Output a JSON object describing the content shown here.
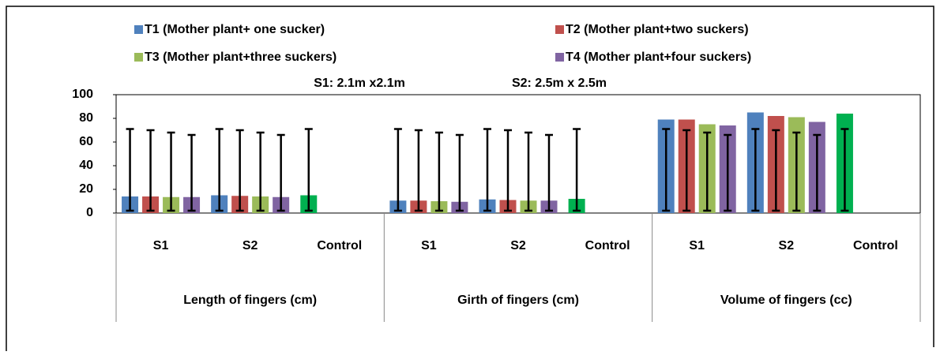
{
  "chart_data": {
    "type": "bar",
    "annotations": [
      "S1: 2.1m x2.1m",
      "S2: 2.5m x 2.5m"
    ],
    "groups": [
      "Length of fingers (cm)",
      "Girth of fingers (cm)",
      "Volume of fingers (cc)"
    ],
    "categories": [
      "S1",
      "S2",
      "Control",
      "S1",
      "S2",
      "Control",
      "S1",
      "S2",
      "Control"
    ],
    "series": [
      {
        "name": "T1 (Mother plant+ one sucker)",
        "color": "#4f81bd",
        "values": [
          14,
          15,
          null,
          10.5,
          11.5,
          null,
          79,
          85,
          null
        ],
        "error_low": [
          2,
          2,
          null,
          2,
          2,
          null,
          2,
          2,
          null
        ],
        "error_high": [
          71,
          71,
          null,
          71,
          71,
          null,
          71,
          71,
          null
        ]
      },
      {
        "name": "T2 (Mother plant+two suckers)",
        "color": "#c0504d",
        "values": [
          14,
          14.5,
          null,
          10.5,
          11,
          null,
          79,
          82,
          null
        ],
        "error_low": [
          2,
          2,
          null,
          2,
          2,
          null,
          2,
          2,
          null
        ],
        "error_high": [
          70,
          70,
          null,
          70,
          70,
          null,
          70,
          70,
          null
        ]
      },
      {
        "name": "T3 (Mother plant+three suckers)",
        "color": "#9bbb59",
        "values": [
          13.5,
          14,
          null,
          10,
          10.5,
          null,
          75,
          81,
          null
        ],
        "error_low": [
          2,
          2,
          null,
          2,
          2,
          null,
          2,
          2,
          null
        ],
        "error_high": [
          68,
          68,
          null,
          68,
          68,
          null,
          68,
          68,
          null
        ]
      },
      {
        "name": "T4 (Mother plant+four suckers)",
        "color": "#8064a2",
        "values": [
          13.5,
          13.5,
          null,
          9.5,
          10.5,
          null,
          74,
          77,
          null
        ],
        "error_low": [
          2,
          2,
          null,
          2,
          2,
          null,
          2,
          2,
          null
        ],
        "error_high": [
          66,
          66,
          null,
          66,
          66,
          null,
          66,
          66,
          null
        ]
      },
      {
        "color": "#00b050",
        "values": [
          null,
          null,
          15,
          null,
          null,
          12,
          null,
          null,
          84
        ],
        "error_low": [
          null,
          null,
          2,
          null,
          null,
          2,
          null,
          null,
          2
        ],
        "error_high": [
          null,
          null,
          71,
          null,
          null,
          71,
          null,
          null,
          71
        ]
      }
    ],
    "ylim": [
      0,
      100
    ],
    "yticks": [
      0,
      20,
      40,
      60,
      80,
      100
    ],
    "grid": false
  }
}
